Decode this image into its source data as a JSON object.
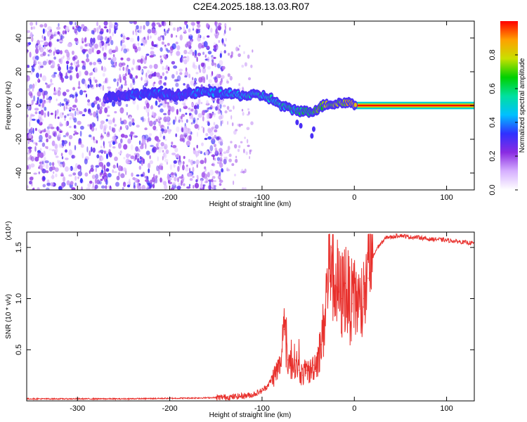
{
  "title": "C2E4.2025.188.13.03.R07",
  "chart_data": [
    {
      "type": "heatmap",
      "xlabel": "Height of straight line (km)",
      "ylabel": "Frequency (Hz)",
      "xlim": [
        -355,
        130
      ],
      "ylim": [
        -50,
        50
      ],
      "xticks": [
        -300,
        -200,
        -100,
        0,
        100
      ],
      "xtick_labels": [
        "-300",
        "-200",
        "-100",
        "0",
        "100"
      ],
      "yticks": [
        40,
        20,
        0,
        -20,
        -40
      ],
      "ytick_labels": [
        "40",
        "20",
        "0",
        "-20",
        "-40"
      ],
      "colorbar": {
        "label": "Normalized spectral amplitude",
        "range": [
          0,
          1
        ],
        "ticks": [
          0.0,
          0.2,
          0.4,
          0.6,
          0.8
        ],
        "tick_labels": [
          "0.0",
          "0.2",
          "0.4",
          "0.6",
          "0.8"
        ],
        "colors": [
          "#ffffff",
          "#d6b0ff",
          "#8a2be2",
          "#3030ff",
          "#00c0ff",
          "#00e0a0",
          "#00d000",
          "#c8e000",
          "#ffa000",
          "#ff0000"
        ]
      },
      "noise_region_x": [
        -355,
        -155
      ],
      "signal_track": {
        "x": [
          -270,
          -250,
          -230,
          -210,
          -195,
          -180,
          -160,
          -140,
          -120,
          -100,
          -90,
          -80,
          -70,
          -60,
          -50,
          -40,
          -30,
          -20,
          -10,
          0,
          130
        ],
        "frequency": [
          5,
          6,
          7,
          7,
          6,
          7,
          8,
          7,
          6,
          6,
          4,
          0,
          -2,
          -3,
          -4,
          -2,
          1,
          1,
          2,
          1,
          0
        ],
        "amplitude": [
          0.25,
          0.3,
          0.35,
          0.35,
          0.3,
          0.35,
          0.4,
          0.45,
          0.5,
          0.5,
          0.5,
          0.55,
          0.55,
          0.55,
          0.6,
          0.7,
          0.75,
          0.75,
          0.8,
          0.85,
          1.0
        ]
      }
    },
    {
      "type": "line",
      "xlabel": "Height of straight line (km)",
      "ylabel": "SNR (10 * v/v)",
      "y_multiplier": "(x10⁴)",
      "xlim": [
        -355,
        130
      ],
      "ylim": [
        0,
        1.65
      ],
      "xticks": [
        -300,
        -200,
        -100,
        0,
        100
      ],
      "xtick_labels": [
        "-300",
        "-200",
        "-100",
        "0",
        "100"
      ],
      "yticks": [
        0.5,
        1.0,
        1.5
      ],
      "ytick_labels": [
        "0.5",
        "1.0",
        "1.5"
      ],
      "series": [
        {
          "color": "#e8302c",
          "x": [
            -355,
            -300,
            -250,
            -200,
            -160,
            -130,
            -110,
            -100,
            -95,
            -90,
            -85,
            -80,
            -76,
            -72,
            -68,
            -64,
            -60,
            -56,
            -52,
            -48,
            -44,
            -40,
            -36,
            -32,
            -28,
            -25,
            -22,
            -18,
            -14,
            -10,
            -6,
            -2,
            2,
            6,
            10,
            15,
            20,
            25,
            30,
            35,
            40,
            50,
            60,
            70,
            80,
            90,
            100,
            110,
            120,
            130
          ],
          "y": [
            0.02,
            0.02,
            0.02,
            0.025,
            0.03,
            0.04,
            0.06,
            0.1,
            0.14,
            0.2,
            0.28,
            0.35,
            0.7,
            0.4,
            0.35,
            0.4,
            0.3,
            0.25,
            0.3,
            0.28,
            0.35,
            0.4,
            0.55,
            0.8,
            1.3,
            1.5,
            1.2,
            1.1,
            1.0,
            1.15,
            1.0,
            0.95,
            1.0,
            0.9,
            1.0,
            1.2,
            1.4,
            1.5,
            1.55,
            1.6,
            1.6,
            1.62,
            1.6,
            1.6,
            1.58,
            1.58,
            1.57,
            1.56,
            1.55,
            1.54
          ]
        }
      ]
    }
  ]
}
